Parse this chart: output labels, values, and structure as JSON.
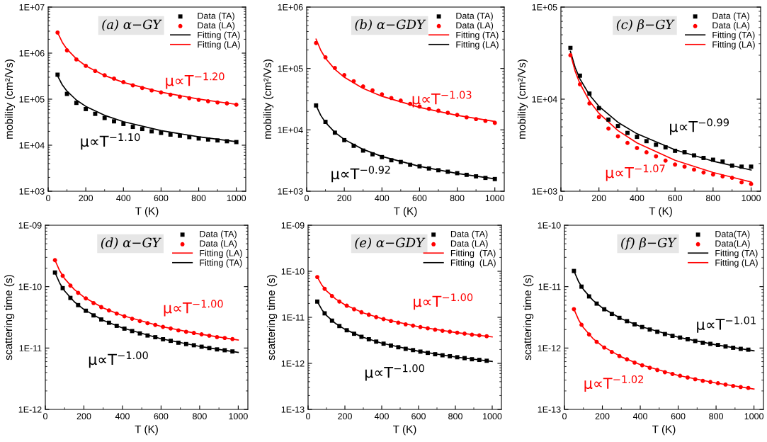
{
  "chart_data": [
    {
      "type": "scatter",
      "title": "(a) α−GY",
      "xlabel": "T (K)",
      "ylabel": "mobility (cm²/Vs)",
      "log": "y",
      "legend": "top right",
      "xlim": [
        0,
        1050
      ],
      "xticks": [
        0,
        200,
        400,
        600,
        800,
        1000
      ],
      "ylim": [
        1000,
        10000000
      ],
      "yticks": [
        {
          "value": 1000,
          "label": "1E+03"
        },
        {
          "value": 10000,
          "label": "1E+04"
        },
        {
          "value": 100000,
          "label": "1E+05"
        },
        {
          "value": 1000000,
          "label": "1E+06"
        },
        {
          "value": 10000000,
          "label": "1E+07"
        }
      ],
      "x": [
        50,
        100,
        150,
        200,
        250,
        300,
        350,
        400,
        450,
        500,
        550,
        600,
        650,
        700,
        750,
        800,
        850,
        900,
        950,
        1000
      ],
      "series": [
        {
          "name": "Data (TA)",
          "color": "#000000",
          "marker": "square",
          "values": [
            340000,
            130000,
            83000,
            61000,
            48000,
            39000,
            33000,
            29000,
            25000,
            22500,
            20000,
            18500,
            17000,
            16000,
            15000,
            14000,
            13300,
            12700,
            12200,
            11700
          ]
        },
        {
          "name": "Data (LA)",
          "color": "#ff0000",
          "marker": "circle",
          "values": [
            2800000,
            1150000,
            730000,
            530000,
            410000,
            330000,
            280000,
            235000,
            200000,
            175000,
            155000,
            140000,
            125000,
            113000,
            105000,
            97000,
            90000,
            85000,
            81000,
            76000
          ]
        },
        {
          "name": "Fitting (TA)",
          "type": "line",
          "color": "#000000",
          "x": [
            50,
            75,
            100,
            150,
            200,
            300,
            400,
            600,
            800,
            1000
          ],
          "values": [
            320000,
            204800,
            149400,
            95700,
            69800,
            44500,
            32500,
            20800,
            15200,
            11900
          ]
        },
        {
          "name": "Fitting (LA)",
          "type": "line",
          "color": "#ff0000",
          "x": [
            50,
            75,
            100,
            150,
            200,
            300,
            400,
            600,
            800,
            1000
          ],
          "values": [
            2800000,
            1722000,
            1218000,
            750000,
            529000,
            326000,
            231000,
            142000,
            100500,
            77000
          ]
        }
      ],
      "annotations": [
        "μ∝T$^{−1.10}$",
        "μ∝T$^{−1.20}$"
      ]
    },
    {
      "type": "scatter",
      "title": "(b) α−GDY",
      "xlabel": "T (K)",
      "ylabel": "mobility (cm²/Vs)",
      "log": "y",
      "legend": "top right",
      "xlim": [
        0,
        1050
      ],
      "xticks": [
        0,
        200,
        400,
        600,
        800,
        1000
      ],
      "ylim": [
        1000,
        1000000
      ],
      "yticks": [
        {
          "value": 1000,
          "label": "1E+03"
        },
        {
          "value": 10000,
          "label": "1E+04"
        },
        {
          "value": 100000,
          "label": "1E+05"
        },
        {
          "value": 1000000,
          "label": "1E+06"
        }
      ],
      "x": [
        50,
        100,
        150,
        200,
        250,
        300,
        350,
        400,
        450,
        500,
        550,
        600,
        650,
        700,
        750,
        800,
        850,
        900,
        950,
        1000
      ],
      "series": [
        {
          "name": "Data (TA)",
          "color": "#000000",
          "marker": "square",
          "values": [
            25000,
            13500,
            9000,
            6800,
            5500,
            4600,
            4000,
            3600,
            3200,
            3000,
            2700,
            2550,
            2350,
            2200,
            2080,
            1970,
            1850,
            1750,
            1650,
            1580
          ]
        },
        {
          "name": "Data (LA)",
          "color": "#ff0000",
          "marker": "circle",
          "values": [
            260000,
            152000,
            102000,
            78000,
            62000,
            51000,
            44000,
            38000,
            33000,
            30000,
            26500,
            24000,
            22000,
            20500,
            19000,
            17500,
            16000,
            15000,
            14000,
            13000
          ]
        },
        {
          "name": "Fitting (TA)",
          "type": "line",
          "color": "#ff0000",
          "x": [
            50,
            75,
            100,
            150,
            200,
            300,
            400,
            600,
            800,
            1000
          ],
          "values": [
            300000,
            197700,
            147000,
            96750,
            72000,
            47400,
            35250,
            23190,
            17250,
            13710
          ]
        },
        {
          "name": "Fitting (LA)",
          "type": "line",
          "color": "#000000",
          "x": [
            50,
            75,
            100,
            150,
            200,
            300,
            400,
            600,
            800,
            1000
          ],
          "values": [
            25000,
            17230,
            13200,
            9100,
            6980,
            4810,
            3690,
            2540,
            1950,
            1590
          ]
        }
      ],
      "annotations": [
        "μ∝T$^{−0.92}$",
        "μ∝T$^{−1.03}$"
      ]
    },
    {
      "type": "scatter",
      "title": "(c) β−GY",
      "xlabel": "T (K)",
      "ylabel": "mobility (cm²/Vs)",
      "log": "y",
      "legend": "top right",
      "xlim": [
        0,
        1050
      ],
      "xticks": [
        0,
        200,
        400,
        600,
        800,
        1000
      ],
      "ylim": [
        1000,
        100000
      ],
      "yticks": [
        {
          "value": 1000,
          "label": "1E+03"
        },
        {
          "value": 10000,
          "label": "1E+04"
        },
        {
          "value": 100000,
          "label": "1E+05"
        }
      ],
      "x": [
        50,
        100,
        150,
        200,
        250,
        300,
        350,
        400,
        450,
        500,
        550,
        600,
        650,
        700,
        750,
        800,
        850,
        900,
        950,
        1000
      ],
      "series": [
        {
          "name": "Data (TA)",
          "color": "#000000",
          "marker": "square",
          "values": [
            36000,
            18000,
            11500,
            8000,
            6000,
            5100,
            4300,
            3900,
            3500,
            3200,
            3000,
            2750,
            2650,
            2450,
            2300,
            2200,
            2100,
            1900,
            1850,
            1850
          ]
        },
        {
          "name": "Data (LA)",
          "color": "#ff0000",
          "marker": "circle",
          "values": [
            30000,
            14500,
            9000,
            6400,
            4800,
            3950,
            3350,
            2950,
            2650,
            2400,
            2150,
            1950,
            1850,
            1720,
            1600,
            1520,
            1450,
            1400,
            1250,
            1200
          ]
        },
        {
          "name": "Fitting (TA)",
          "type": "line",
          "color": "#000000",
          "x": [
            50,
            75,
            100,
            150,
            200,
            300,
            400,
            600,
            800,
            1000
          ],
          "values": [
            33000,
            22080,
            16620,
            11120,
            8370,
            5600,
            4210,
            2820,
            2120,
            1700
          ]
        },
        {
          "name": "Fitting (LA)",
          "type": "line",
          "color": "#ff0000",
          "x": [
            50,
            75,
            100,
            150,
            200,
            300,
            400,
            600,
            800,
            1000
          ],
          "values": [
            31000,
            20090,
            14760,
            9570,
            7030,
            4560,
            3350,
            2170,
            1600,
            1260
          ]
        }
      ],
      "annotations": [
        "μ∝T$^{−0.99}$",
        "μ∝T$^{−1.07}$"
      ]
    },
    {
      "type": "scatter",
      "title": "(d) α−GY",
      "xlabel": "T (K)",
      "ylabel": "scattering time (s)",
      "log": "y",
      "legend": "top right",
      "xlim": [
        0,
        1050
      ],
      "xticks": [
        0,
        200,
        400,
        600,
        800,
        1000
      ],
      "ylim": [
        1e-12,
        1e-09
      ],
      "yticks": [
        {
          "value": 1e-12,
          "label": "1E-12"
        },
        {
          "value": 1e-11,
          "label": "1E-11"
        },
        {
          "value": 1e-10,
          "label": "1E-10"
        },
        {
          "value": 1e-09,
          "label": "1E-09"
        }
      ],
      "x": [
        50,
        90,
        130,
        170,
        210,
        250,
        290,
        330,
        370,
        410,
        450,
        490,
        530,
        570,
        610,
        650,
        690,
        730,
        770,
        810,
        850,
        890,
        930,
        970
      ],
      "series": [
        {
          "name": "Data (TA)",
          "color": "#000000",
          "marker": "square",
          "values": [
            1.7e-10,
            9.45e-11,
            6.55e-11,
            5e-11,
            4.05e-11,
            3.4e-11,
            2.92e-11,
            2.58e-11,
            2.3e-11,
            2.07e-11,
            1.89e-11,
            1.73e-11,
            1.6e-11,
            1.5e-11,
            1.39e-11,
            1.31e-11,
            1.22e-11,
            1.16e-11,
            1.11e-11,
            1.05e-11,
            1e-11,
            9.5e-12,
            9.2e-12,
            8.8e-12
          ]
        },
        {
          "name": "Data (LA)",
          "color": "#ff0000",
          "marker": "circle",
          "values": [
            2.7e-10,
            1.5e-10,
            1.04e-10,
            7.94e-11,
            6.43e-11,
            5.4e-11,
            4.64e-11,
            4.1e-11,
            3.65e-11,
            3.29e-11,
            3e-11,
            2.75e-11,
            2.54e-11,
            2.38e-11,
            2.21e-11,
            2.08e-11,
            1.94e-11,
            1.84e-11,
            1.76e-11,
            1.67e-11,
            1.59e-11,
            1.51e-11,
            1.46e-11,
            1.4e-11
          ]
        },
        {
          "name": "Fitting (LA)",
          "type": "line",
          "color": "#ff0000",
          "x": [
            50,
            75,
            100,
            150,
            200,
            300,
            400,
            600,
            800,
            1000
          ],
          "values": [
            2.7e-10,
            1.8e-10,
            1.35e-10,
            9e-11,
            6.75e-11,
            4.5e-11,
            3.375e-11,
            2.25e-11,
            1.6875e-11,
            1.35e-11
          ]
        },
        {
          "name": "Fitting (TA)",
          "type": "line",
          "color": "#000000",
          "x": [
            50,
            75,
            100,
            150,
            200,
            300,
            400,
            600,
            800,
            1000
          ],
          "values": [
            1.7e-10,
            1.133e-10,
            8.5e-11,
            5.67e-11,
            4.25e-11,
            2.83e-11,
            2.125e-11,
            1.417e-11,
            1.0625e-11,
            8.5e-12
          ]
        }
      ],
      "annotations": [
        "μ∝T$^{−1.00}$",
        "μ∝T$^{−1.00}$"
      ]
    },
    {
      "type": "scatter",
      "title": "(e) α−GDY",
      "xlabel": "T (K)",
      "ylabel": "scattering time (s)",
      "log": "y",
      "legend": "top right",
      "xlim": [
        0,
        1050
      ],
      "xticks": [
        0,
        200,
        400,
        600,
        800,
        1000
      ],
      "ylim": [
        1e-13,
        1e-09
      ],
      "yticks": [
        {
          "value": 1e-13,
          "label": "1E-13"
        },
        {
          "value": 1e-12,
          "label": "1E-12"
        },
        {
          "value": 1e-11,
          "label": "1E-11"
        },
        {
          "value": 1e-10,
          "label": "1E-10"
        },
        {
          "value": 1e-09,
          "label": "1E-09"
        }
      ],
      "x": [
        50,
        90,
        130,
        170,
        210,
        250,
        290,
        330,
        370,
        410,
        450,
        490,
        530,
        570,
        610,
        650,
        690,
        730,
        770,
        810,
        850,
        890,
        930,
        970
      ],
      "series": [
        {
          "name": "Data (TA)",
          "color": "#000000",
          "marker": "square",
          "values": [
            2.2e-11,
            1.22e-11,
            8.47e-12,
            6.47e-12,
            5.24e-12,
            4.4e-12,
            3.78e-12,
            3.34e-12,
            2.97e-12,
            2.68e-12,
            2.44e-12,
            2.24e-12,
            2.07e-12,
            1.94e-12,
            1.8e-12,
            1.69e-12,
            1.58e-12,
            1.5e-12,
            1.43e-12,
            1.36e-12,
            1.3e-12,
            1.23e-12,
            1.19e-12,
            1.14e-12
          ]
        },
        {
          "name": "Data (LA)",
          "color": "#ff0000",
          "marker": "circle",
          "values": [
            7.5e-11,
            4.17e-11,
            2.89e-11,
            2.2e-11,
            1.79e-11,
            1.5e-11,
            1.29e-11,
            1.14e-11,
            1.01e-11,
            9.15e-12,
            8.33e-12,
            7.65e-12,
            7.05e-12,
            6.6e-12,
            6.15e-12,
            5.78e-12,
            5.4e-12,
            5.1e-12,
            4.88e-12,
            4.65e-12,
            4.43e-12,
            4.2e-12,
            4.05e-12,
            3.9e-12
          ]
        },
        {
          "name": "Fitting  (TA)",
          "type": "line",
          "color": "#ff0000",
          "x": [
            50,
            75,
            100,
            150,
            200,
            300,
            400,
            600,
            800,
            1000
          ],
          "values": [
            7.5e-11,
            5e-11,
            3.75e-11,
            2.5e-11,
            1.875e-11,
            1.25e-11,
            9.375e-12,
            6.25e-12,
            4.6875e-12,
            3.75e-12
          ]
        },
        {
          "name": "Fitting  (LA)",
          "type": "line",
          "color": "#000000",
          "x": [
            50,
            75,
            100,
            150,
            200,
            300,
            400,
            600,
            800,
            1000
          ],
          "values": [
            2.2e-11,
            1.467e-11,
            1.1e-11,
            7.33e-12,
            5.5e-12,
            3.67e-12,
            2.75e-12,
            1.833e-12,
            1.375e-12,
            1.1e-12
          ]
        }
      ],
      "annotations": [
        "μ∝T$^{−1.00}$",
        "μ∝T$^{−1.00}$"
      ]
    },
    {
      "type": "scatter",
      "title": "(f) β−GY",
      "xlabel": "T (K)",
      "ylabel": "scattering time (s)",
      "log": "y",
      "legend": "top right",
      "xlim": [
        0,
        1050
      ],
      "xticks": [
        0,
        200,
        400,
        600,
        800,
        1000
      ],
      "ylim": [
        1e-13,
        1e-10
      ],
      "yticks": [
        {
          "value": 1e-13,
          "label": "1E-13"
        },
        {
          "value": 1e-12,
          "label": "1E-12"
        },
        {
          "value": 1e-11,
          "label": "1E-11"
        },
        {
          "value": 1e-10,
          "label": "1E-10"
        }
      ],
      "x": [
        50,
        90,
        130,
        170,
        210,
        250,
        290,
        330,
        370,
        410,
        450,
        490,
        530,
        570,
        610,
        650,
        690,
        730,
        770,
        810,
        850,
        890,
        930,
        970
      ],
      "series": [
        {
          "name": "Data(TA)",
          "color": "#000000",
          "marker": "square",
          "values": [
            1.8e-11,
            1e-11,
            6.93e-12,
            5.29e-12,
            4.28e-12,
            3.6e-12,
            3.1e-12,
            2.74e-12,
            2.43e-12,
            2.2e-12,
            2e-12,
            1.84e-12,
            1.69e-12,
            1.58e-12,
            1.48e-12,
            1.39e-12,
            1.3e-12,
            1.22e-12,
            1.17e-12,
            1.12e-12,
            1.06e-12,
            1.01e-12,
            9.7e-13,
            9.4e-13
          ]
        },
        {
          "name": "Data(LA)",
          "color": "#ff0000",
          "marker": "circle",
          "values": [
            4.3e-12,
            2.39e-12,
            1.66e-12,
            1.26e-12,
            1.02e-12,
            8.6e-13,
            7.4e-13,
            6.54e-13,
            5.8e-13,
            5.25e-13,
            4.77e-13,
            4.39e-13,
            4.04e-13,
            3.78e-13,
            3.53e-13,
            3.31e-13,
            3.1e-13,
            2.92e-13,
            2.8e-13,
            2.67e-13,
            2.54e-13,
            2.41e-13,
            2.32e-13,
            2.24e-13
          ]
        },
        {
          "name": "Fitting (TA)",
          "type": "line",
          "color": "#000000",
          "x": [
            50,
            75,
            100,
            150,
            200,
            300,
            400,
            600,
            800,
            1000
          ],
          "values": [
            1.8e-11,
            1.2e-11,
            9e-12,
            6e-12,
            4.5e-12,
            3e-12,
            2.25e-12,
            1.5e-12,
            1.125e-12,
            9e-13
          ]
        },
        {
          "name": "Fitting (LA)",
          "type": "line",
          "color": "#ff0000",
          "x": [
            50,
            75,
            100,
            150,
            200,
            300,
            400,
            600,
            800,
            1000
          ],
          "values": [
            4.3e-12,
            2.867e-12,
            2.15e-12,
            1.433e-12,
            1.075e-12,
            7.17e-13,
            5.375e-13,
            3.58e-13,
            2.69e-13,
            2.15e-13
          ]
        }
      ],
      "annotations": [
        "μ∝T$^{−1.01}$",
        "μ∝T$^{−1.02}$"
      ]
    }
  ]
}
